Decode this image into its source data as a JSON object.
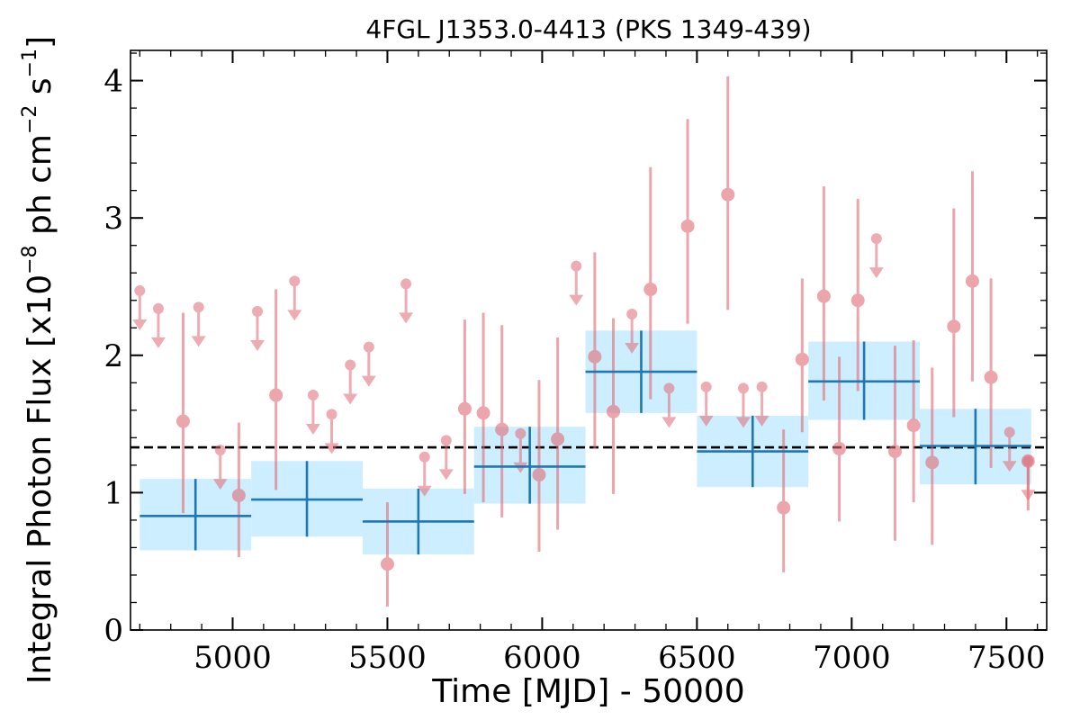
{
  "chart_data": {
    "type": "scatter",
    "title": "4FGL J1353.0-4413 (PKS 1349-439)",
    "xlabel": "Time [MJD] - 50000",
    "ylabel": "Integral Photon Flux [x10^-8 ph cm^-2 s^-1]",
    "ylabel_parts": {
      "before": "Integral Photon Flux [x10",
      "exp1": "−8",
      "mid": " ph cm",
      "exp2": "−2",
      "mid2": " s",
      "exp3": "−1",
      "after": "]"
    },
    "xlim": [
      4670,
      7630
    ],
    "ylim": [
      0,
      4.22
    ],
    "x_ticks": [
      5000,
      5500,
      6000,
      6500,
      7000,
      7500
    ],
    "y_ticks": [
      0,
      1,
      2,
      3,
      4
    ],
    "mean_flux": 1.33,
    "colors": {
      "points": "#e06a72",
      "bins_line": "#1f77b4",
      "bins_fill": "#cdeeff",
      "mean_line": "#000000"
    },
    "binned": [
      {
        "x_low": 4700,
        "x_high": 5060,
        "x": 4880,
        "y": 0.83,
        "y_low": 0.58,
        "y_high": 1.1
      },
      {
        "x_low": 5060,
        "x_high": 5420,
        "x": 5240,
        "y": 0.95,
        "y_low": 0.68,
        "y_high": 1.23
      },
      {
        "x_low": 5420,
        "x_high": 5780,
        "x": 5600,
        "y": 0.79,
        "y_low": 0.55,
        "y_high": 1.03
      },
      {
        "x_low": 5780,
        "x_high": 6140,
        "x": 5960,
        "y": 1.19,
        "y_low": 0.92,
        "y_high": 1.48
      },
      {
        "x_low": 6140,
        "x_high": 6500,
        "x": 6320,
        "y": 1.88,
        "y_low": 1.58,
        "y_high": 2.18
      },
      {
        "x_low": 6500,
        "x_high": 6860,
        "x": 6680,
        "y": 1.3,
        "y_low": 1.04,
        "y_high": 1.56
      },
      {
        "x_low": 6860,
        "x_high": 7220,
        "x": 7040,
        "y": 1.81,
        "y_low": 1.53,
        "y_high": 2.1
      },
      {
        "x_low": 7220,
        "x_high": 7580,
        "x": 7400,
        "y": 1.34,
        "y_low": 1.06,
        "y_high": 1.61
      }
    ],
    "detections": [
      {
        "x": 4840,
        "y": 1.52,
        "y_low": 0.85,
        "y_high": 2.31
      },
      {
        "x": 5020,
        "y": 0.98,
        "y_low": 0.53,
        "y_high": 1.51
      },
      {
        "x": 5140,
        "y": 1.71,
        "y_low": 1.02,
        "y_high": 2.48
      },
      {
        "x": 5500,
        "y": 0.48,
        "y_low": 0.17,
        "y_high": 0.93
      },
      {
        "x": 5750,
        "y": 1.61,
        "y_low": 0.99,
        "y_high": 2.26
      },
      {
        "x": 5810,
        "y": 1.58,
        "y_low": 0.93,
        "y_high": 2.31
      },
      {
        "x": 5870,
        "y": 1.46,
        "y_low": 0.82,
        "y_high": 2.22
      },
      {
        "x": 5990,
        "y": 1.13,
        "y_low": 0.57,
        "y_high": 1.82
      },
      {
        "x": 6050,
        "y": 1.39,
        "y_low": 0.73,
        "y_high": 2.13
      },
      {
        "x": 6170,
        "y": 1.99,
        "y_low": 1.32,
        "y_high": 2.75
      },
      {
        "x": 6230,
        "y": 1.59,
        "y_low": 0.99,
        "y_high": 2.27
      },
      {
        "x": 6350,
        "y": 2.48,
        "y_low": 1.68,
        "y_high": 3.37
      },
      {
        "x": 6470,
        "y": 2.94,
        "y_low": 2.23,
        "y_high": 3.72
      },
      {
        "x": 6600,
        "y": 3.17,
        "y_low": 2.33,
        "y_high": 4.03
      },
      {
        "x": 6780,
        "y": 0.89,
        "y_low": 0.42,
        "y_high": 1.46
      },
      {
        "x": 6840,
        "y": 1.97,
        "y_low": 1.44,
        "y_high": 2.56
      },
      {
        "x": 6910,
        "y": 2.43,
        "y_low": 1.67,
        "y_high": 3.23
      },
      {
        "x": 6960,
        "y": 1.32,
        "y_low": 0.79,
        "y_high": 1.99
      },
      {
        "x": 7020,
        "y": 2.4,
        "y_low": 1.74,
        "y_high": 3.14
      },
      {
        "x": 7140,
        "y": 1.3,
        "y_low": 0.65,
        "y_high": 2.07
      },
      {
        "x": 7200,
        "y": 1.49,
        "y_low": 0.93,
        "y_high": 2.11
      },
      {
        "x": 7260,
        "y": 1.22,
        "y_low": 0.62,
        "y_high": 1.91
      },
      {
        "x": 7330,
        "y": 2.21,
        "y_low": 1.55,
        "y_high": 3.07
      },
      {
        "x": 7390,
        "y": 2.54,
        "y_low": 1.81,
        "y_high": 3.34
      },
      {
        "x": 7450,
        "y": 1.84,
        "y_low": 1.18,
        "y_high": 2.56
      },
      {
        "x": 7570,
        "y": 1.23,
        "y_low": 0.87,
        "y_high": 1.22
      }
    ],
    "upper_limits": [
      {
        "x": 4700,
        "y": 2.47
      },
      {
        "x": 4760,
        "y": 2.34
      },
      {
        "x": 4890,
        "y": 2.35
      },
      {
        "x": 4960,
        "y": 1.31
      },
      {
        "x": 5080,
        "y": 2.32
      },
      {
        "x": 5200,
        "y": 2.54
      },
      {
        "x": 5260,
        "y": 1.71
      },
      {
        "x": 5320,
        "y": 1.57
      },
      {
        "x": 5380,
        "y": 1.93
      },
      {
        "x": 5440,
        "y": 2.06
      },
      {
        "x": 5560,
        "y": 2.52
      },
      {
        "x": 5620,
        "y": 1.26
      },
      {
        "x": 5690,
        "y": 1.38
      },
      {
        "x": 5930,
        "y": 1.43
      },
      {
        "x": 6110,
        "y": 2.65
      },
      {
        "x": 6290,
        "y": 2.3
      },
      {
        "x": 6410,
        "y": 1.76
      },
      {
        "x": 6530,
        "y": 1.77
      },
      {
        "x": 6650,
        "y": 1.76
      },
      {
        "x": 6710,
        "y": 1.77
      },
      {
        "x": 7080,
        "y": 2.85
      },
      {
        "x": 7510,
        "y": 1.44
      },
      {
        "x": 7570,
        "y": 1.23
      }
    ]
  }
}
